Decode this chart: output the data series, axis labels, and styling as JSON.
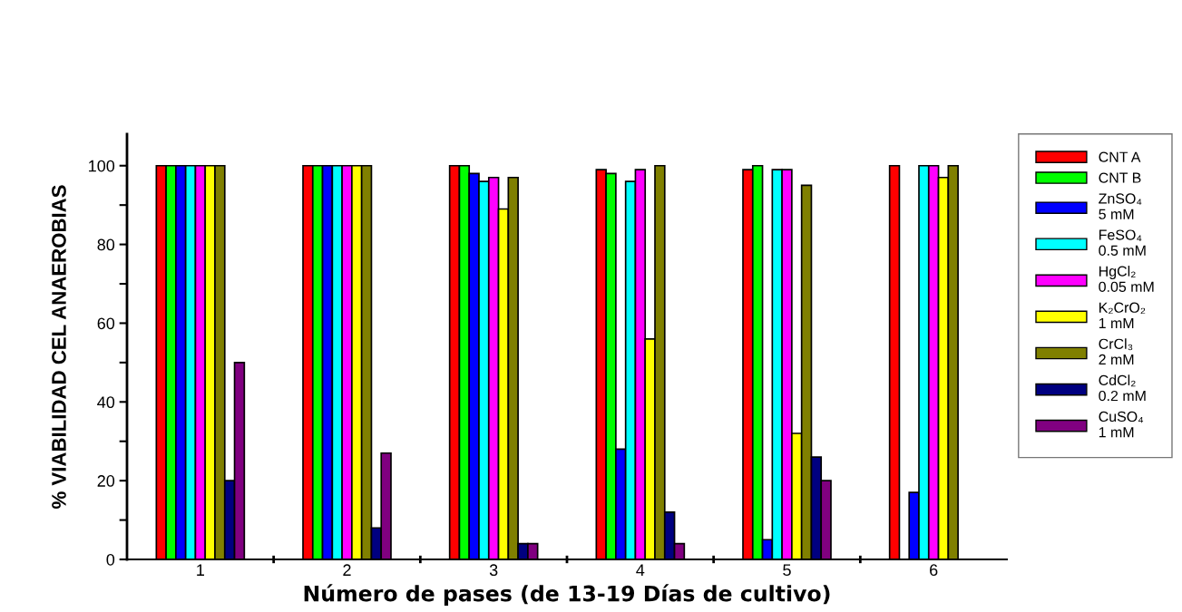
{
  "chart_data": {
    "type": "bar",
    "xlabel": "Número de pases (de 13-19 Días de cultivo)",
    "ylabel": "% VIABILIDAD CEL ANAEROBIAS",
    "categories": [
      "1",
      "2",
      "3",
      "4",
      "5",
      "6"
    ],
    "series": [
      {
        "name": "CNT A",
        "color": "#ff0000",
        "values": [
          100,
          100,
          100,
          99,
          99,
          100
        ]
      },
      {
        "name": "CNT B",
        "color": "#00ff00",
        "values": [
          100,
          100,
          100,
          98,
          100,
          null
        ]
      },
      {
        "name": "ZnSO₄\n5 mM",
        "color": "#0000ff",
        "values": [
          100,
          100,
          98,
          28,
          5,
          17
        ]
      },
      {
        "name": "FeSO₄\n0.5 mM",
        "color": "#00ffff",
        "values": [
          100,
          100,
          96,
          96,
          99,
          100
        ]
      },
      {
        "name": "HgCl₂\n0.05 mM",
        "color": "#ff00ff",
        "values": [
          100,
          100,
          97,
          99,
          99,
          100
        ]
      },
      {
        "name": "K₂CrO₂\n1 mM",
        "color": "#ffff00",
        "values": [
          100,
          100,
          89,
          56,
          32,
          97
        ]
      },
      {
        "name": "CrCl₃\n2 mM",
        "color": "#808000",
        "values": [
          100,
          100,
          97,
          100,
          95,
          100
        ]
      },
      {
        "name": "CdCl₂\n0.2 mM",
        "color": "#000080",
        "values": [
          20,
          8,
          4,
          12,
          26,
          null
        ]
      },
      {
        "name": "CuSO₄\n1 mM",
        "color": "#800080",
        "values": [
          50,
          27,
          4,
          4,
          20,
          null
        ]
      }
    ],
    "ylim": [
      0,
      108
    ],
    "yticks": [
      0,
      {
        "value": 10,
        "label": null
      },
      20,
      {
        "value": 30,
        "label": null
      },
      40,
      {
        "value": 50,
        "label": null
      },
      60,
      {
        "value": 70,
        "label": null
      },
      80,
      {
        "value": 90,
        "label": null
      },
      100
    ],
    "grid": false,
    "legend": "right"
  }
}
